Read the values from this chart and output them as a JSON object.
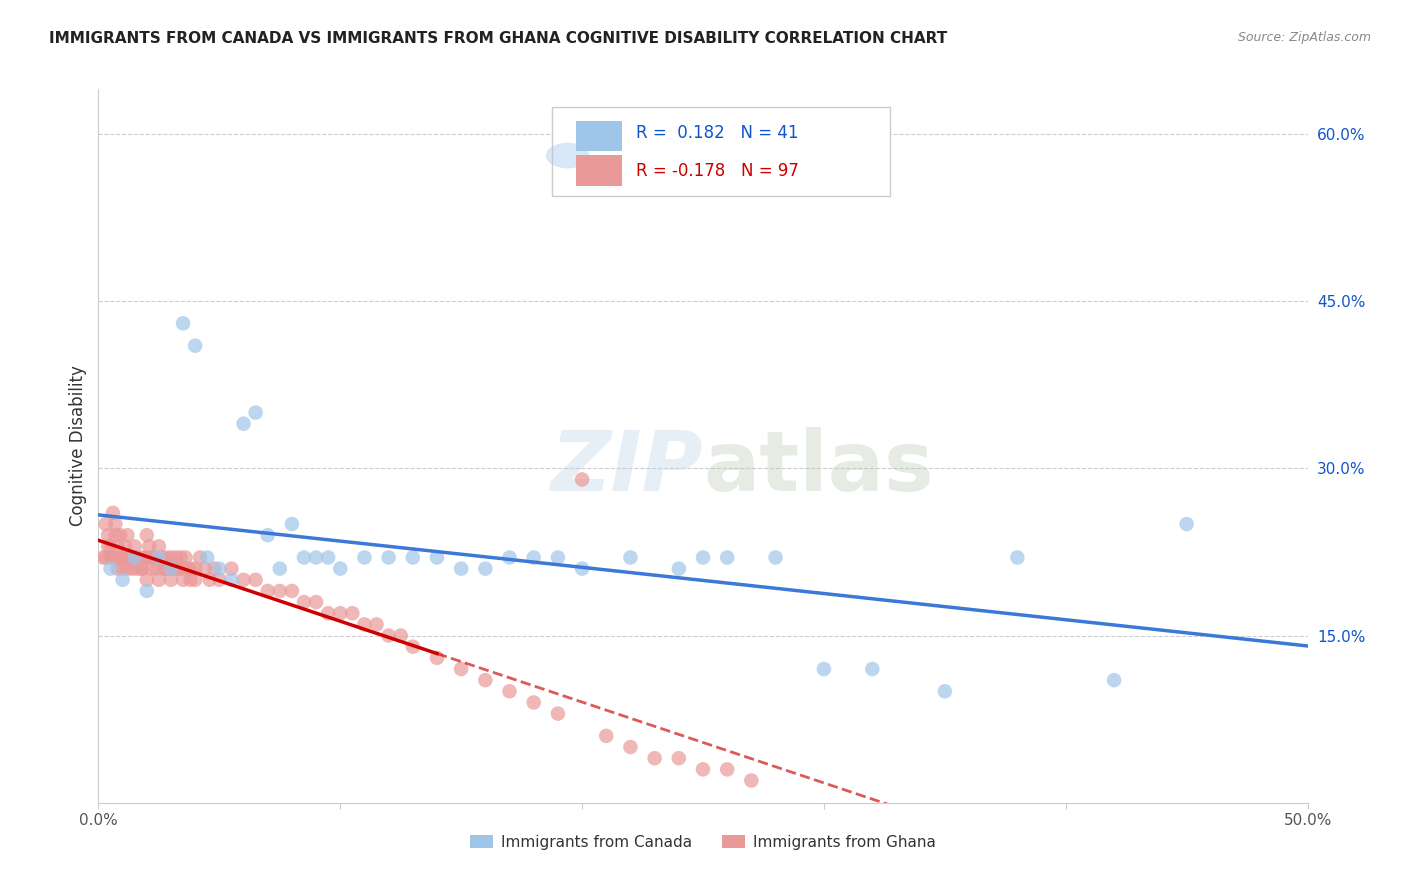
{
  "title": "IMMIGRANTS FROM CANADA VS IMMIGRANTS FROM GHANA COGNITIVE DISABILITY CORRELATION CHART",
  "source": "Source: ZipAtlas.com",
  "ylabel": "Cognitive Disability",
  "xlim": [
    0.0,
    0.5
  ],
  "ylim": [
    0.0,
    0.64
  ],
  "canada_R": 0.182,
  "canada_N": 41,
  "ghana_R": -0.178,
  "ghana_N": 97,
  "canada_color": "#9FC5E8",
  "ghana_color": "#EA9999",
  "canada_line_color": "#3C78D8",
  "ghana_line_color": "#E06666",
  "ghana_line_solid_color": "#CC0000",
  "watermark": "ZIPatlas",
  "ytick_vals": [
    0.15,
    0.3,
    0.45,
    0.6
  ],
  "ytick_labels": [
    "15.0%",
    "30.0%",
    "45.0%",
    "60.0%"
  ],
  "legend_R_color": "#1155CC",
  "legend_ghana_R_color": "#CC0000"
}
